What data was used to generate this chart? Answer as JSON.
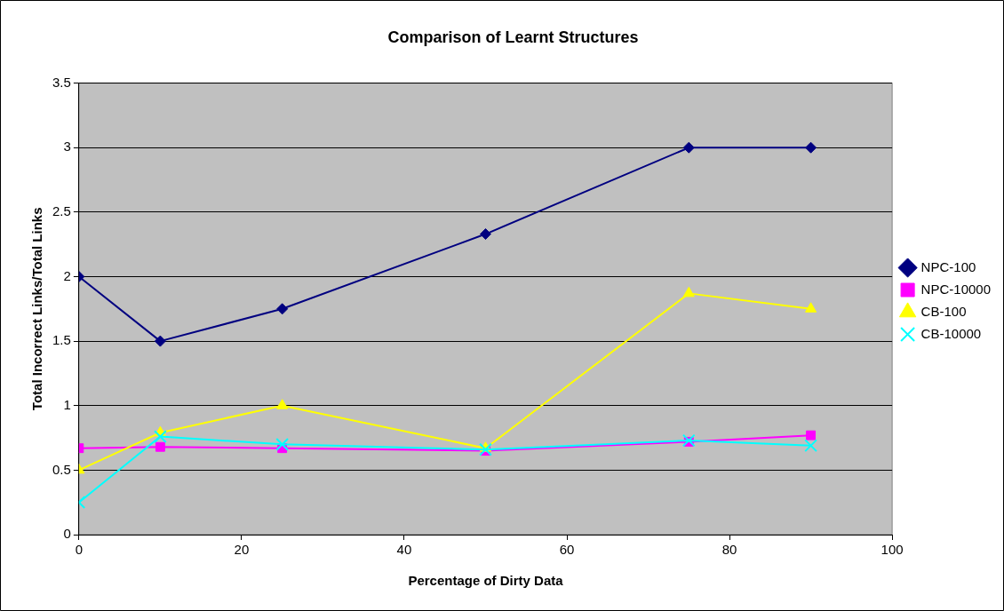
{
  "chart_data": {
    "type": "line",
    "title": "Comparison of Learnt Structures",
    "xlabel": "Percentage of Dirty Data",
    "ylabel": "Total Incorrect Links/Total Links",
    "x": [
      0,
      10,
      25,
      50,
      75,
      90
    ],
    "series": [
      {
        "name": "NPC-100",
        "color": "#000080",
        "marker": "diamond",
        "values": [
          2,
          1.5,
          1.75,
          2.33,
          3,
          3
        ]
      },
      {
        "name": "NPC-10000",
        "color": "#ff00ff",
        "marker": "square",
        "values": [
          0.67,
          0.68,
          0.67,
          0.65,
          0.72,
          0.77
        ]
      },
      {
        "name": "CB-100",
        "color": "#ffff00",
        "marker": "triangle",
        "values": [
          0.5,
          0.79,
          1,
          0.67,
          1.87,
          1.75
        ]
      },
      {
        "name": "CB-10000",
        "color": "#00ffff",
        "marker": "cross",
        "values": [
          0.25,
          0.76,
          0.7,
          0.66,
          0.73,
          0.69
        ]
      }
    ],
    "xlim": [
      0,
      100
    ],
    "xticks": [
      0,
      20,
      40,
      60,
      80,
      100
    ],
    "ylim": [
      0,
      3.5
    ],
    "yticks": [
      0,
      0.5,
      1,
      1.5,
      2,
      2.5,
      3,
      3.5
    ],
    "grid": "y",
    "legend": "right",
    "line_style": "solid"
  }
}
